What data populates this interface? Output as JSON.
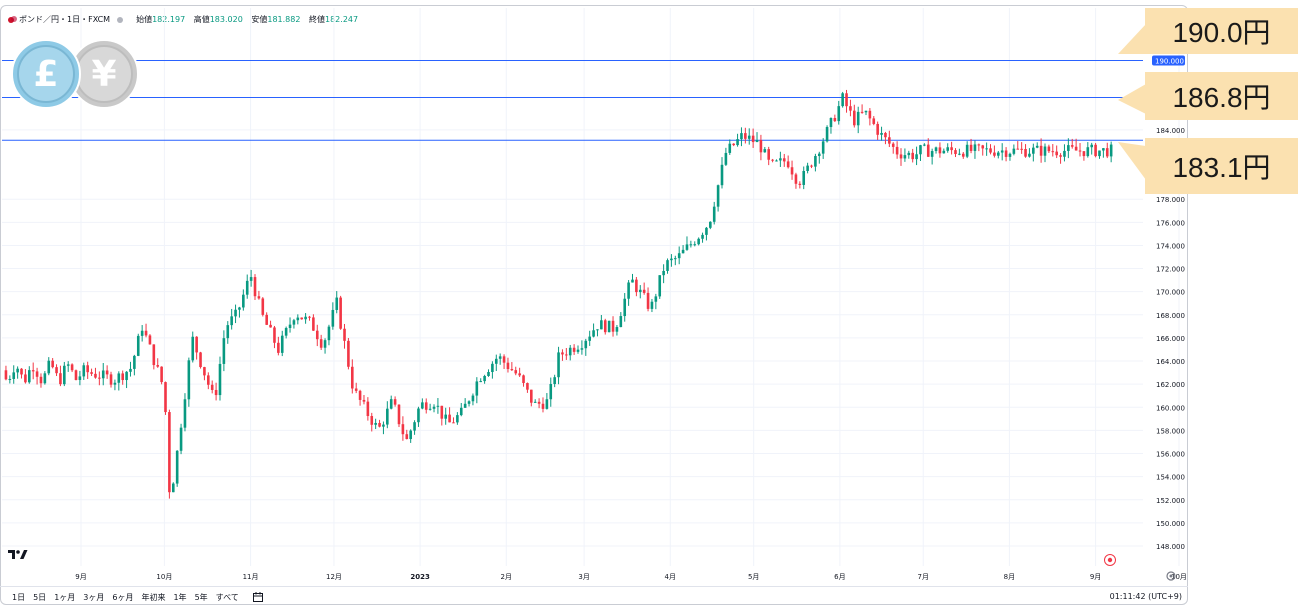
{
  "header": {
    "symbol": "ポンド／円・1日・FXCM",
    "ohlc": [
      {
        "label": "始値",
        "value": "182.197"
      },
      {
        "label": "高値",
        "value": "183.020"
      },
      {
        "label": "安値",
        "value": "181.882"
      },
      {
        "label": "終値",
        "value": "182.247"
      }
    ]
  },
  "colors": {
    "up": "#089981",
    "down": "#f23645",
    "hline": "#2962ff",
    "callout": "#fbe1b0",
    "pound_coin": "#8ecae6",
    "yen_coin": "#c8c8c8"
  },
  "icons": {
    "pound": "£",
    "yen": "¥",
    "tv_logo": "tradingview-logo-icon",
    "target": "target-icon",
    "settings": "gear-icon",
    "calendar": "calendar-range-icon"
  },
  "callouts": [
    {
      "text": "190.0円"
    },
    {
      "text": "186.8円"
    },
    {
      "text": "183.1円"
    }
  ],
  "bottom": {
    "timeframes": [
      "1日",
      "5日",
      "1ヶ月",
      "3ヶ月",
      "6ヶ月",
      "年初来",
      "1年",
      "5年",
      "すべて"
    ],
    "clock": "01:11:42 (UTC+9)"
  },
  "chart_data": {
    "type": "candlestick",
    "ylim": [
      146.4,
      192.0
    ],
    "yticks": [
      "148.000",
      "150.000",
      "152.000",
      "154.000",
      "156.000",
      "158.000",
      "160.000",
      "162.000",
      "164.000",
      "166.000",
      "168.000",
      "170.000",
      "172.000",
      "174.000",
      "176.000",
      "178.000",
      "184.000"
    ],
    "highlighted_price": "190.000",
    "xtick_labels": [
      "9月",
      "10月",
      "11月",
      "12月",
      "2023",
      "2月",
      "3月",
      "4月",
      "5月",
      "6月",
      "7月",
      "8月",
      "9月",
      "10月"
    ],
    "xtick_days": [
      0,
      30,
      61,
      91,
      122,
      153,
      181,
      212,
      242,
      273,
      303,
      334,
      365,
      395
    ],
    "horizontal_lines": [
      190.0,
      186.8,
      183.1
    ],
    "anchors": [
      [
        0,
        163.2
      ],
      [
        12,
        162.4
      ],
      [
        18,
        163.4
      ],
      [
        22,
        167.0
      ],
      [
        30,
        161.5
      ],
      [
        32,
        152.0
      ],
      [
        34,
        155.0
      ],
      [
        40,
        166.0
      ],
      [
        48,
        160.5
      ],
      [
        52,
        167.0
      ],
      [
        56,
        168.0
      ],
      [
        61,
        171.5
      ],
      [
        65,
        168.0
      ],
      [
        71,
        165.0
      ],
      [
        77,
        168.2
      ],
      [
        83,
        167.2
      ],
      [
        87,
        165.4
      ],
      [
        92,
        169.0
      ],
      [
        98,
        161.5
      ],
      [
        103,
        159.5
      ],
      [
        107,
        158.0
      ],
      [
        112,
        160.5
      ],
      [
        117,
        157.0
      ],
      [
        122,
        160.2
      ],
      [
        127,
        160.5
      ],
      [
        132,
        158.5
      ],
      [
        137,
        159.5
      ],
      [
        143,
        162.5
      ],
      [
        150,
        164.4
      ],
      [
        157,
        162.8
      ],
      [
        163,
        160.2
      ],
      [
        168,
        160.5
      ],
      [
        172,
        164.5
      ],
      [
        180,
        165.6
      ],
      [
        186,
        167.2
      ],
      [
        192,
        166.8
      ],
      [
        198,
        171.0
      ],
      [
        202,
        169.6
      ],
      [
        205,
        168.5
      ],
      [
        210,
        172.3
      ],
      [
        215,
        173.0
      ],
      [
        222,
        174.8
      ],
      [
        226,
        176.0
      ],
      [
        232,
        182.0
      ],
      [
        238,
        183.5
      ],
      [
        244,
        182.8
      ],
      [
        248,
        180.8
      ],
      [
        254,
        181.4
      ],
      [
        258,
        179.5
      ],
      [
        260,
        180.0
      ],
      [
        265,
        182.2
      ],
      [
        270,
        184.6
      ],
      [
        274,
        186.7
      ],
      [
        278,
        184.8
      ],
      [
        282,
        185.5
      ],
      [
        288,
        183.5
      ],
      [
        294,
        182.0
      ],
      [
        300,
        181.8
      ],
      [
        302,
        182.2
      ]
    ]
  }
}
